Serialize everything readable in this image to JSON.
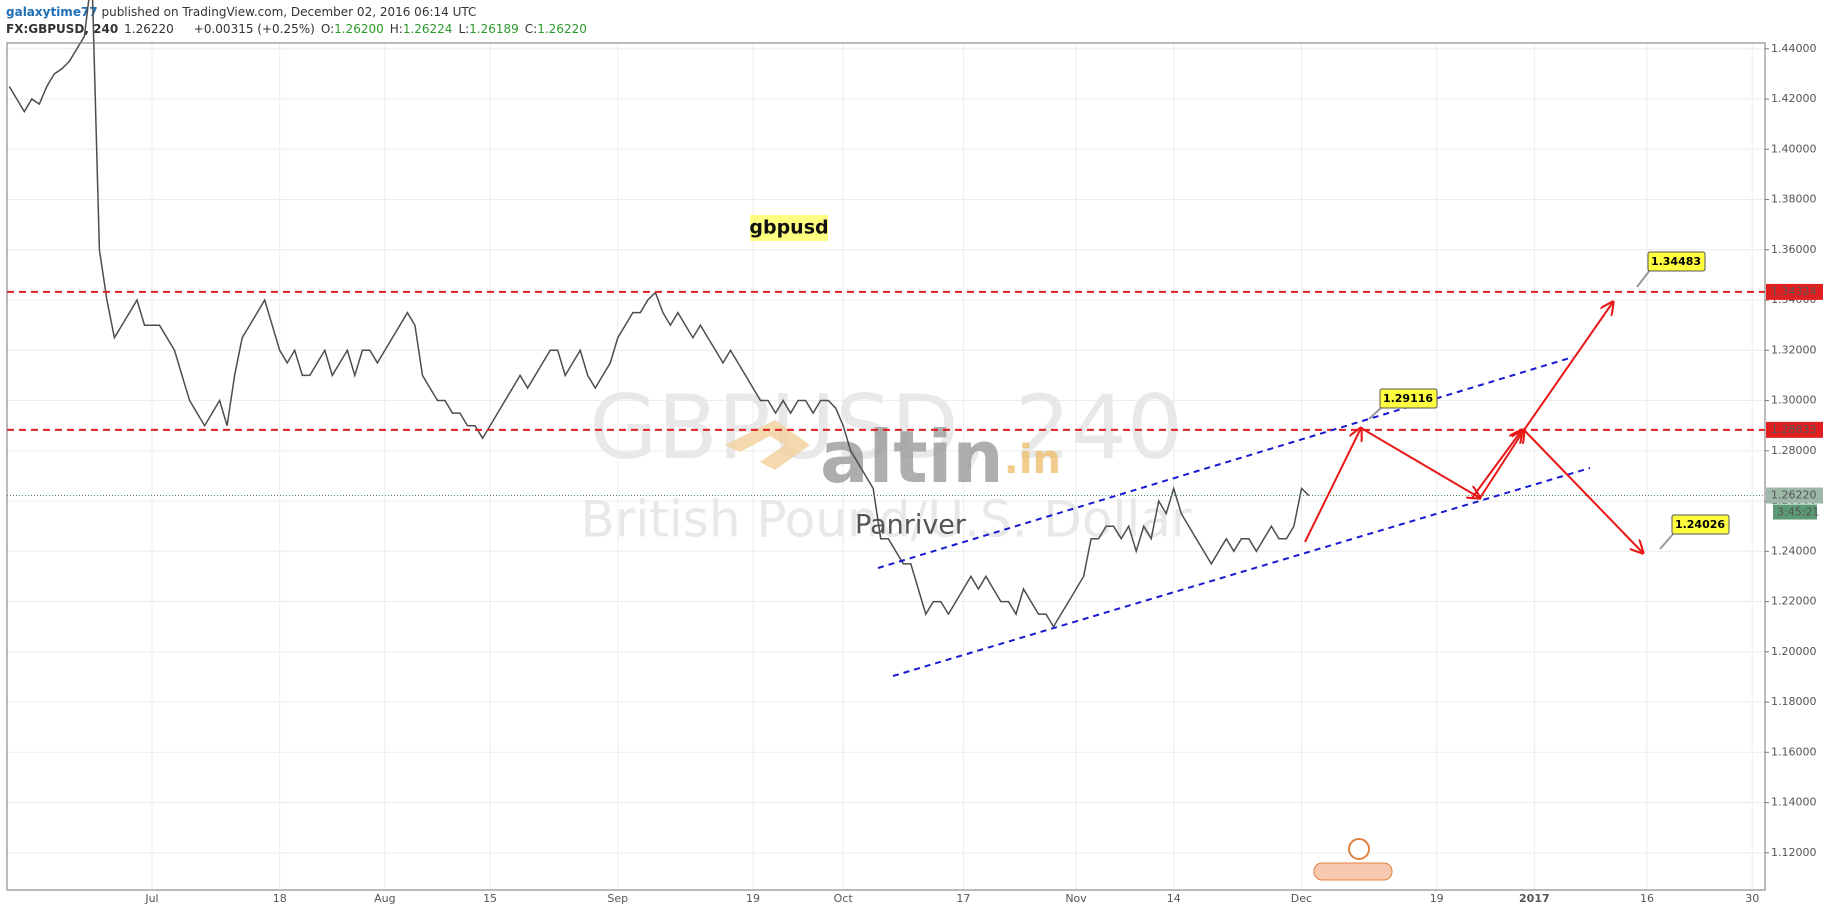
{
  "header": {
    "author": "galaxytime77",
    "published": " published on TradingView.com, December 02, 2016 06:14 UTC",
    "symbol": "FX:GBPUSD, 240",
    "last": "1.26220",
    "change": "+0.00315 (+0.25%)",
    "o_label": "O:",
    "open": "1.26200",
    "h_label": "H:",
    "high": "1.26224",
    "l_label": "L:",
    "low": "1.26189",
    "c_label": "C:",
    "close": "1.26220"
  },
  "chart_data": {
    "type": "line",
    "title": "British Pound/U.S. Dollar, 240, FXCM",
    "categories": [
      null,
      null,
      null,
      null,
      null,
      null,
      null,
      null,
      null,
      null,
      null,
      null,
      null,
      null,
      null,
      null,
      null,
      null,
      null,
      "Jul",
      null,
      null,
      null,
      null,
      null,
      null,
      null,
      null,
      null,
      null,
      null,
      null,
      null,
      null,
      null,
      null,
      "18",
      null,
      null,
      null,
      null,
      null,
      null,
      null,
      null,
      null,
      null,
      null,
      null,
      null,
      "Aug",
      null,
      null,
      null,
      null,
      null,
      null,
      null,
      null,
      null,
      null,
      null,
      null,
      null,
      "15",
      null,
      null,
      null,
      null,
      null,
      null,
      null,
      null,
      null,
      null,
      null,
      null,
      null,
      null,
      null,
      null,
      "Sep",
      null,
      null,
      null,
      null,
      null,
      null,
      null,
      null,
      null,
      null,
      null,
      null,
      null,
      null,
      null,
      null,
      null,
      "19",
      null,
      null,
      null,
      null,
      null,
      null,
      null,
      null,
      null,
      null,
      null,
      "Oct",
      null,
      null,
      null,
      null,
      null,
      null,
      null,
      null,
      null,
      null,
      null,
      null,
      null,
      null,
      null,
      "17",
      null,
      null,
      null,
      null,
      null,
      null,
      null,
      null,
      null,
      null,
      null,
      null,
      null,
      null,
      "Nov",
      null,
      null,
      null,
      null,
      null,
      null,
      null,
      null,
      null,
      null,
      null,
      null,
      "14",
      null,
      null,
      null,
      null,
      null,
      null,
      null,
      null,
      null,
      null,
      null,
      null,
      null,
      null,
      null,
      null,
      "Dec",
      null,
      null,
      null,
      null,
      null,
      null,
      null,
      null,
      null,
      null,
      null,
      null,
      null,
      null,
      null,
      null,
      null,
      "19",
      null,
      null,
      null,
      null,
      null,
      null,
      null,
      null,
      null,
      null,
      null,
      null,
      "2017",
      null,
      null,
      null,
      null,
      null,
      null,
      null,
      null,
      null,
      null,
      null,
      null,
      null,
      null,
      "16",
      null,
      null,
      null,
      null,
      null,
      null,
      null,
      null,
      null,
      null,
      null,
      null,
      null,
      "30",
      null
    ],
    "series": [
      {
        "color": "#4d4d4d",
        "values": [
          1.425,
          1.42,
          1.415,
          1.42,
          1.418,
          1.425,
          1.43,
          1.432,
          1.435,
          1.44,
          1.445,
          1.47,
          1.36,
          1.34,
          1.325,
          1.33,
          1.335,
          1.34,
          1.33,
          1.33,
          1.33,
          1.325,
          1.32,
          1.31,
          1.3,
          1.295,
          1.29,
          1.295,
          1.3,
          1.29,
          1.31,
          1.325,
          1.33,
          1.335,
          1.34,
          1.33,
          1.32,
          1.315,
          1.32,
          1.31,
          1.31,
          1.315,
          1.32,
          1.31,
          1.315,
          1.32,
          1.31,
          1.32,
          1.32,
          1.315,
          1.32,
          1.325,
          1.33,
          1.335,
          1.33,
          1.31,
          1.305,
          1.3,
          1.3,
          1.295,
          1.295,
          1.29,
          1.29,
          1.285,
          1.29,
          1.295,
          1.3,
          1.305,
          1.31,
          1.305,
          1.31,
          1.315,
          1.32,
          1.32,
          1.31,
          1.315,
          1.32,
          1.31,
          1.305,
          1.31,
          1.315,
          1.325,
          1.33,
          1.335,
          1.335,
          1.34,
          1.343,
          1.335,
          1.33,
          1.335,
          1.33,
          1.325,
          1.33,
          1.325,
          1.32,
          1.315,
          1.32,
          1.315,
          1.31,
          1.305,
          1.3,
          1.3,
          1.295,
          1.3,
          1.295,
          1.3,
          1.3,
          1.295,
          1.3,
          1.3,
          1.297,
          1.29,
          1.28,
          1.275,
          1.27,
          1.265,
          1.245,
          1.245,
          1.24,
          1.235,
          1.235,
          1.225,
          1.215,
          1.22,
          1.22,
          1.215,
          1.22,
          1.225,
          1.23,
          1.225,
          1.23,
          1.225,
          1.22,
          1.22,
          1.215,
          1.225,
          1.22,
          1.215,
          1.215,
          1.21,
          1.215,
          1.22,
          1.225,
          1.23,
          1.245,
          1.245,
          1.25,
          1.25,
          1.245,
          1.25,
          1.24,
          1.25,
          1.245,
          1.26,
          1.255,
          1.265,
          1.255,
          1.25,
          1.245,
          1.24,
          1.235,
          1.24,
          1.245,
          1.24,
          1.245,
          1.245,
          1.24,
          1.245,
          1.25,
          1.245,
          1.245,
          1.25,
          1.265,
          1.2622,
          null,
          null,
          null,
          null,
          null,
          null,
          null,
          null,
          null,
          null,
          null,
          null,
          null,
          null,
          null,
          null,
          null,
          null,
          null,
          null,
          null,
          null,
          null,
          null,
          null,
          null,
          null,
          null,
          null,
          null,
          null,
          null,
          null,
          null,
          null,
          null,
          null,
          null,
          null,
          null,
          null,
          null,
          null,
          null,
          null,
          null,
          null,
          null,
          null,
          null,
          null,
          null,
          null,
          null,
          null,
          null,
          null,
          null,
          null,
          null
        ]
      }
    ],
    "ylim": [
      1.1052,
      1.4423
    ],
    "yticks": [
      {
        "value": 1.12,
        "label": "1.12000"
      },
      {
        "value": 1.14,
        "label": "1.14000"
      },
      {
        "value": 1.16,
        "label": "1.16000"
      },
      {
        "value": 1.18,
        "label": "1.18000"
      },
      {
        "value": 1.2,
        "label": "1.20000"
      },
      {
        "value": 1.22,
        "label": "1.22000"
      },
      {
        "value": 1.24,
        "label": "1.24000"
      },
      {
        "value": 1.26,
        "label": "1.26000"
      },
      {
        "value": 1.28,
        "label": "1.28000"
      },
      {
        "value": 1.3,
        "label": "1.30000"
      },
      {
        "value": 1.32,
        "label": "1.32000"
      },
      {
        "value": 1.34,
        "label": "1.34000"
      },
      {
        "value": 1.36,
        "label": "1.36000"
      },
      {
        "value": 1.38,
        "label": "1.38000"
      },
      {
        "value": 1.4,
        "label": "1.40000"
      },
      {
        "value": 1.42,
        "label": "1.42000"
      },
      {
        "value": 1.44,
        "label": "1.44000"
      }
    ],
    "grid": true,
    "levels": [
      1.34324,
      1.28833
    ],
    "level_color": "#e02020",
    "last_price": {
      "value": 1.2622,
      "label": "1.26220"
    },
    "countdown": "3:45:21",
    "label": "gbpusd",
    "callouts": [
      "1.34483",
      "1.29116",
      "1.24026"
    ],
    "watermark": {
      "symbol": "GBPUSD, 240",
      "description": "British Pound/U.S. Dollar"
    },
    "logo": {
      "name": "altin",
      "suffix": ".in"
    },
    "author_mark": "Panriver"
  }
}
